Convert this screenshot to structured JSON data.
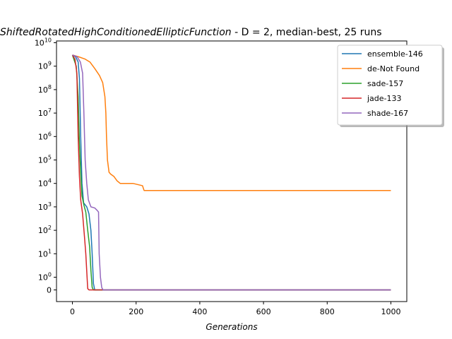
{
  "chart_data": {
    "type": "line",
    "title_function": "ShiftedRotatedHighConditionedEllipticFunction",
    "title_rest": " - D = 2, median-best, 25 runs",
    "xlabel": "Generations",
    "ylabel": "",
    "xlim": [
      -50,
      1050
    ],
    "x_ticks": [
      0,
      200,
      400,
      600,
      800,
      1000
    ],
    "y_scale": "symlog",
    "y_ticks": [
      {
        "value": 0,
        "label": "0"
      },
      {
        "value": 1,
        "label": "10",
        "exp": "0"
      },
      {
        "value": 10,
        "label": "10",
        "exp": "1"
      },
      {
        "value": 100,
        "label": "10",
        "exp": "2"
      },
      {
        "value": 1000,
        "label": "10",
        "exp": "3"
      },
      {
        "value": 10000,
        "label": "10",
        "exp": "4"
      },
      {
        "value": 100000,
        "label": "10",
        "exp": "5"
      },
      {
        "value": 1000000,
        "label": "10",
        "exp": "6"
      },
      {
        "value": 10000000,
        "label": "10",
        "exp": "7"
      },
      {
        "value": 100000000,
        "label": "10",
        "exp": "8"
      },
      {
        "value": 1000000000,
        "label": "10",
        "exp": "9"
      },
      {
        "value": 10000000000,
        "label": "10",
        "exp": "10"
      }
    ],
    "legend_position": "top-right",
    "series": [
      {
        "name": "ensemble-146",
        "color": "#1f77b4",
        "points": [
          [
            0,
            3000000000.0
          ],
          [
            10,
            2500000000.0
          ],
          [
            18,
            1500000000.0
          ],
          [
            22,
            300000000.0
          ],
          [
            26,
            1000000.0
          ],
          [
            30,
            10000.0
          ],
          [
            35,
            1500
          ],
          [
            45,
            1000
          ],
          [
            52,
            500
          ],
          [
            58,
            100
          ],
          [
            62,
            10
          ],
          [
            66,
            0.5
          ],
          [
            70,
            0
          ],
          [
            1000,
            0
          ]
        ]
      },
      {
        "name": "de-Not Found",
        "color": "#ff7f0e",
        "points": [
          [
            0,
            3000000000.0
          ],
          [
            20,
            2500000000.0
          ],
          [
            40,
            2000000000.0
          ],
          [
            55,
            1500000000.0
          ],
          [
            70,
            800000000.0
          ],
          [
            85,
            400000000.0
          ],
          [
            95,
            200000000.0
          ],
          [
            102,
            50000000.0
          ],
          [
            105,
            10000000.0
          ],
          [
            107,
            1000000.0
          ],
          [
            110,
            100000.0
          ],
          [
            115,
            30000.0
          ],
          [
            120,
            25000.0
          ],
          [
            130,
            20000.0
          ],
          [
            140,
            13000.0
          ],
          [
            150,
            10000.0
          ],
          [
            190,
            10000.0
          ],
          [
            220,
            8000.0
          ],
          [
            225,
            5000.0
          ],
          [
            1000,
            5000.0
          ]
        ]
      },
      {
        "name": "sade-157",
        "color": "#2ca02c",
        "points": [
          [
            0,
            3000000000.0
          ],
          [
            12,
            1000000000.0
          ],
          [
            18,
            50000000.0
          ],
          [
            22,
            500000.0
          ],
          [
            26,
            30000.0
          ],
          [
            30,
            3000.0
          ],
          [
            36,
            1200
          ],
          [
            42,
            600
          ],
          [
            48,
            100
          ],
          [
            54,
            20
          ],
          [
            58,
            2
          ],
          [
            62,
            0.2
          ],
          [
            66,
            0
          ],
          [
            1000,
            0
          ]
        ]
      },
      {
        "name": "jade-133",
        "color": "#d62728",
        "points": [
          [
            0,
            3000000000.0
          ],
          [
            8,
            2000000000.0
          ],
          [
            14,
            500000000.0
          ],
          [
            18,
            1000000.0
          ],
          [
            22,
            20000.0
          ],
          [
            26,
            2000.0
          ],
          [
            32,
            500
          ],
          [
            38,
            50
          ],
          [
            42,
            10
          ],
          [
            46,
            1
          ],
          [
            48,
            0.1
          ],
          [
            52,
            0
          ],
          [
            1000,
            0
          ]
        ]
      },
      {
        "name": "shade-167",
        "color": "#9467bd",
        "points": [
          [
            0,
            3000000000.0
          ],
          [
            15,
            2500000000.0
          ],
          [
            25,
            1500000000.0
          ],
          [
            32,
            500000000.0
          ],
          [
            36,
            10000000.0
          ],
          [
            40,
            100000.0
          ],
          [
            45,
            10000.0
          ],
          [
            50,
            2000
          ],
          [
            58,
            1000
          ],
          [
            70,
            900
          ],
          [
            78,
            700
          ],
          [
            82,
            600
          ],
          [
            84,
            10
          ],
          [
            88,
            1
          ],
          [
            92,
            0.2
          ],
          [
            96,
            0
          ],
          [
            1000,
            0
          ]
        ]
      }
    ]
  }
}
